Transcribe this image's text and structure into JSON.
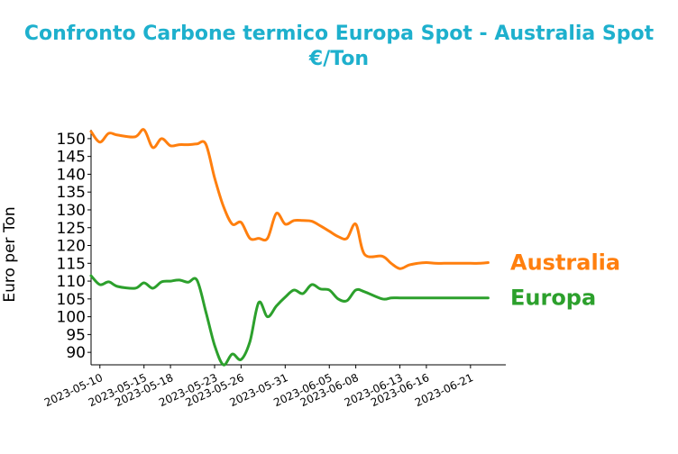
{
  "title_line1": "Confronto Carbone termico Europa Spot - Australia Spot",
  "title_line2": "€/Ton",
  "colors": {
    "title": "#1eb0cd",
    "australia": "#ff7f0e",
    "europa": "#2ca02c",
    "axis": "#000000"
  },
  "chart_data": {
    "type": "line",
    "title": "Confronto Carbone termico Europa Spot - Australia Spot €/Ton",
    "xlabel": "",
    "ylabel": "Euro per Ton",
    "ylim": [
      86.5,
      152.5
    ],
    "xlim": [
      "2023-05-09",
      "2023-06-25"
    ],
    "grid": false,
    "legend": "direct labels at right end of series",
    "yticks": [
      90,
      95,
      100,
      105,
      110,
      115,
      120,
      125,
      130,
      135,
      140,
      145,
      150
    ],
    "xticks": [
      "2023-05-10",
      "2023-05-15",
      "2023-05-18",
      "2023-05-23",
      "2023-05-26",
      "2023-05-31",
      "2023-06-05",
      "2023-06-08",
      "2023-06-13",
      "2023-06-16",
      "2023-06-21"
    ],
    "series": [
      {
        "name": "Australia",
        "x": [
          "2023-05-09",
          "2023-05-10",
          "2023-05-11",
          "2023-05-12",
          "2023-05-14",
          "2023-05-15",
          "2023-05-16",
          "2023-05-17",
          "2023-05-18",
          "2023-05-19",
          "2023-05-20",
          "2023-05-21",
          "2023-05-22",
          "2023-05-23",
          "2023-05-24",
          "2023-05-25",
          "2023-05-26",
          "2023-05-27",
          "2023-05-28",
          "2023-05-29",
          "2023-05-30",
          "2023-05-31",
          "2023-06-01",
          "2023-06-02",
          "2023-06-03",
          "2023-06-04",
          "2023-06-05",
          "2023-06-06",
          "2023-06-07",
          "2023-06-08",
          "2023-06-09",
          "2023-06-11",
          "2023-06-12",
          "2023-06-13",
          "2023-06-14",
          "2023-06-15",
          "2023-06-16",
          "2023-06-17",
          "2023-06-18",
          "2023-06-19",
          "2023-06-21",
          "2023-06-22",
          "2023-06-23"
        ],
        "values": [
          152.0,
          149.0,
          151.5,
          151.0,
          150.5,
          152.5,
          147.5,
          150.0,
          148.0,
          148.3,
          148.3,
          148.5,
          148.5,
          139.0,
          131.0,
          126.0,
          126.5,
          122.0,
          122.0,
          122.0,
          129.0,
          126.0,
          127.0,
          127.0,
          126.8,
          125.5,
          124.0,
          122.5,
          122.0,
          126.0,
          117.5,
          117.0,
          115.0,
          113.5,
          114.5,
          115.0,
          115.2,
          115.0,
          115.0,
          115.0,
          115.0,
          115.0,
          115.2
        ]
      },
      {
        "name": "Europa",
        "x": [
          "2023-05-09",
          "2023-05-10",
          "2023-05-11",
          "2023-05-12",
          "2023-05-14",
          "2023-05-15",
          "2023-05-16",
          "2023-05-17",
          "2023-05-18",
          "2023-05-19",
          "2023-05-20",
          "2023-05-21",
          "2023-05-22",
          "2023-05-23",
          "2023-05-24",
          "2023-05-25",
          "2023-05-26",
          "2023-05-27",
          "2023-05-28",
          "2023-05-29",
          "2023-05-30",
          "2023-05-31",
          "2023-06-01",
          "2023-06-02",
          "2023-06-03",
          "2023-06-04",
          "2023-06-05",
          "2023-06-06",
          "2023-06-07",
          "2023-06-08",
          "2023-06-09",
          "2023-06-11",
          "2023-06-12",
          "2023-06-13",
          "2023-06-14",
          "2023-06-15",
          "2023-06-16",
          "2023-06-17",
          "2023-06-18",
          "2023-06-19",
          "2023-06-21",
          "2023-06-22",
          "2023-06-23"
        ],
        "values": [
          111.5,
          109.0,
          109.8,
          108.5,
          108.0,
          109.5,
          108.0,
          109.8,
          110.0,
          110.3,
          109.7,
          110.3,
          101.5,
          92.0,
          86.5,
          89.5,
          88.0,
          93.0,
          104.0,
          100.0,
          103.0,
          105.5,
          107.5,
          106.5,
          109.0,
          107.8,
          107.5,
          105.0,
          104.5,
          107.5,
          107.0,
          105.0,
          105.3,
          105.3,
          105.3,
          105.3,
          105.3,
          105.3,
          105.3,
          105.3,
          105.3,
          105.3,
          105.3
        ]
      }
    ]
  }
}
